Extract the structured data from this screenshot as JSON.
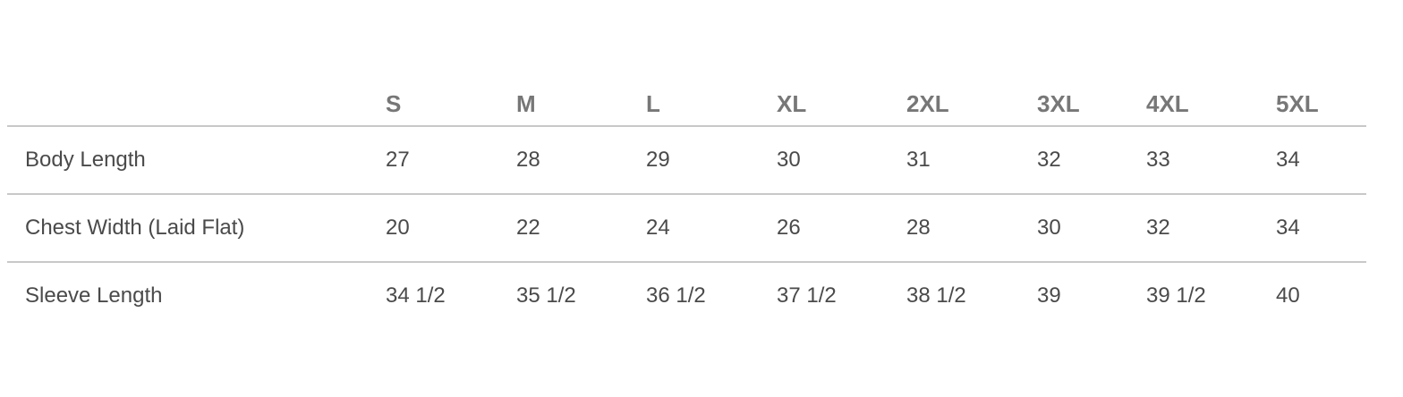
{
  "size_chart": {
    "sizes": [
      "S",
      "M",
      "L",
      "XL",
      "2XL",
      "3XL",
      "4XL",
      "5XL"
    ],
    "rows": [
      {
        "label": "Body Length",
        "values": [
          "27",
          "28",
          "29",
          "30",
          "31",
          "32",
          "33",
          "34"
        ]
      },
      {
        "label": "Chest Width (Laid Flat)",
        "values": [
          "20",
          "22",
          "24",
          "26",
          "28",
          "30",
          "32",
          "34"
        ]
      },
      {
        "label": "Sleeve Length",
        "values": [
          "34 1/2",
          "35 1/2",
          "36 1/2",
          "37 1/2",
          "38 1/2",
          "39",
          "39 1/2",
          "40"
        ]
      }
    ]
  }
}
